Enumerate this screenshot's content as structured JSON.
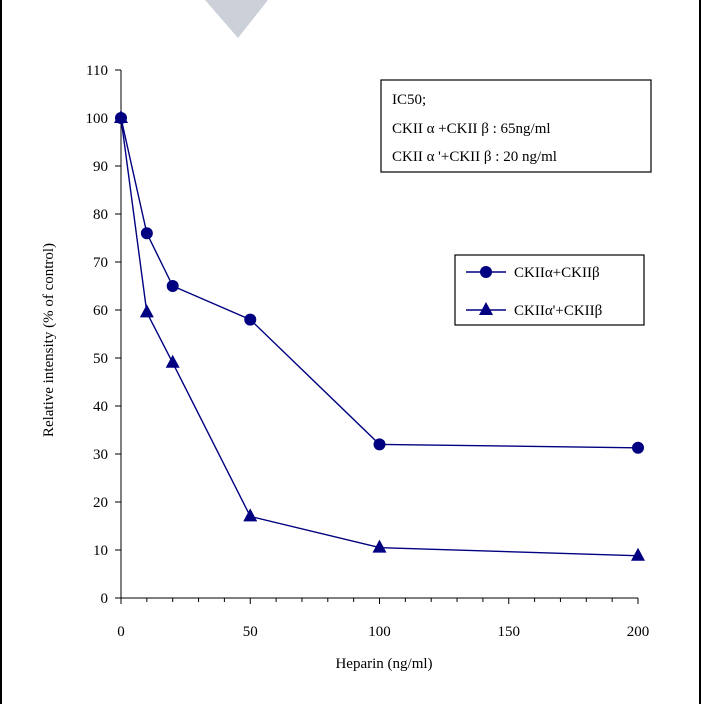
{
  "colors": {
    "series": "#000080",
    "axis": "#000000",
    "background": "#ffffff"
  },
  "annotation": {
    "lines": [
      "IC50;",
      "CKII α +CKII β : 65ng/ml",
      "CKII α '+CKII β : 20 ng/ml"
    ]
  },
  "chart_data": {
    "type": "line",
    "title": "",
    "xlabel": "Heparin (ng/ml)",
    "ylabel": "Relative intensity (% of control)",
    "xlim": [
      0,
      200
    ],
    "ylim": [
      0,
      110
    ],
    "x_ticks": [
      0,
      50,
      100,
      150,
      200
    ],
    "y_ticks": [
      0,
      10,
      20,
      30,
      40,
      50,
      60,
      70,
      80,
      90,
      100,
      110
    ],
    "grid": false,
    "legend_position": "right",
    "series": [
      {
        "name": "CKIIα+CKIIβ",
        "marker": "circle",
        "x": [
          0,
          10,
          20,
          50,
          100,
          200
        ],
        "y": [
          100,
          76,
          65,
          58,
          32,
          31.3
        ]
      },
      {
        "name": "CKIIα'+CKIIβ",
        "marker": "triangle",
        "x": [
          0,
          10,
          20,
          50,
          100,
          200
        ],
        "y": [
          100,
          59.5,
          49,
          17,
          10.5,
          8.8
        ]
      }
    ]
  }
}
